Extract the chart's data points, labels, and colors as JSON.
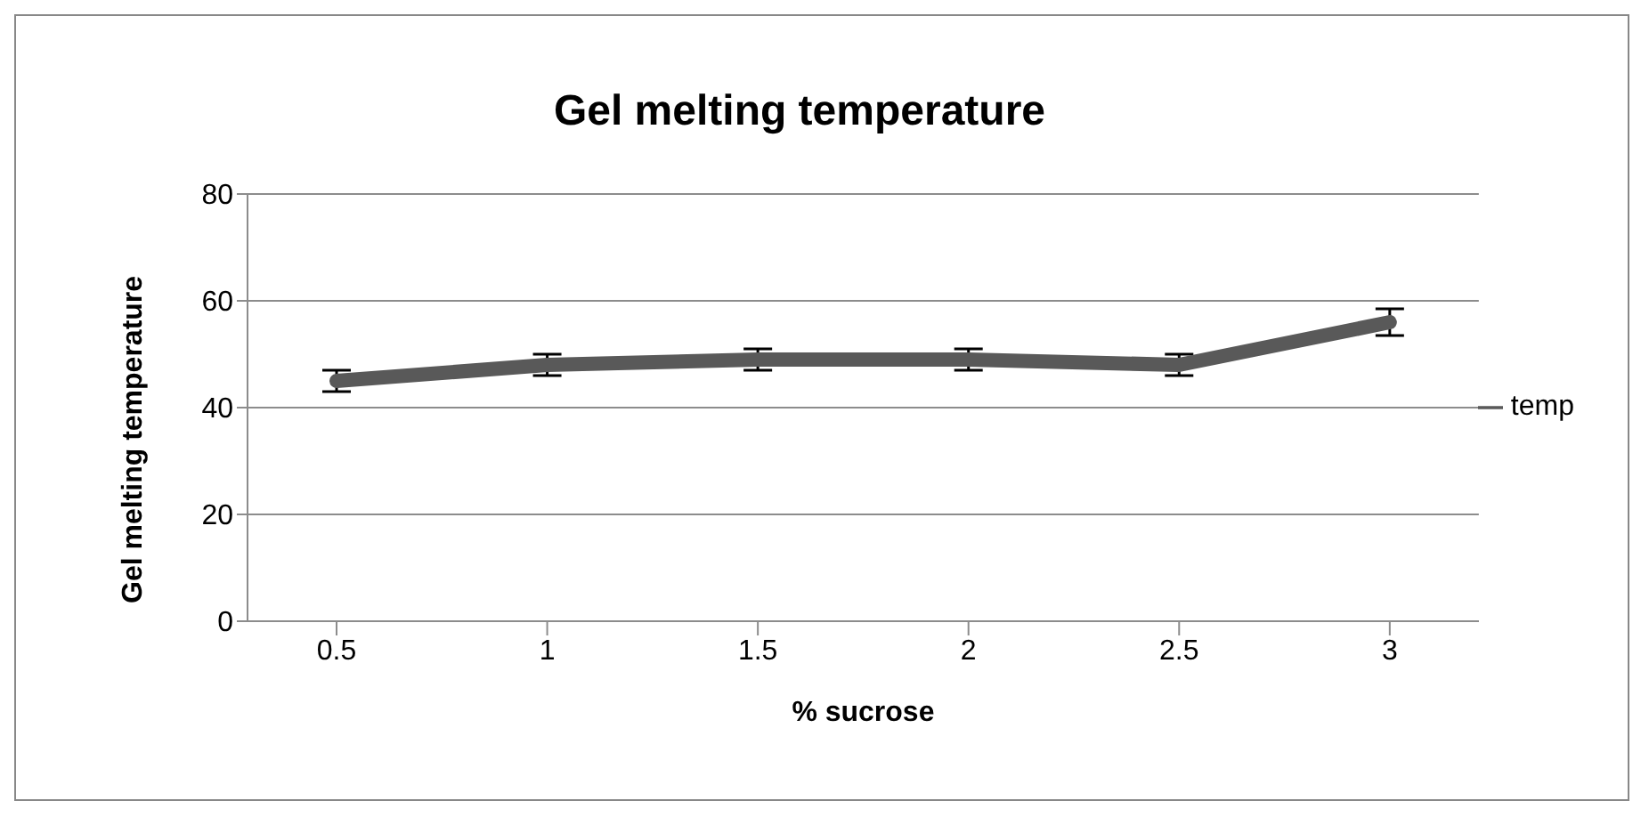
{
  "chart_data": {
    "type": "line",
    "title": "Gel melting temperature",
    "xlabel": "% sucrose",
    "ylabel": "Gel melting temperature",
    "categories": [
      "0.5",
      "1",
      "1.5",
      "2",
      "2.5",
      "3"
    ],
    "series": [
      {
        "name": "temp",
        "color": "#595959",
        "values": [
          45,
          48,
          49,
          49,
          48,
          56
        ],
        "errors": [
          2,
          2,
          2,
          2,
          2,
          2.5
        ]
      }
    ],
    "ylim": [
      0,
      80
    ],
    "yticks": [
      0,
      20,
      40,
      60,
      80
    ],
    "grid": "y",
    "legend": "right",
    "marker": "none",
    "line_style": "solid"
  }
}
